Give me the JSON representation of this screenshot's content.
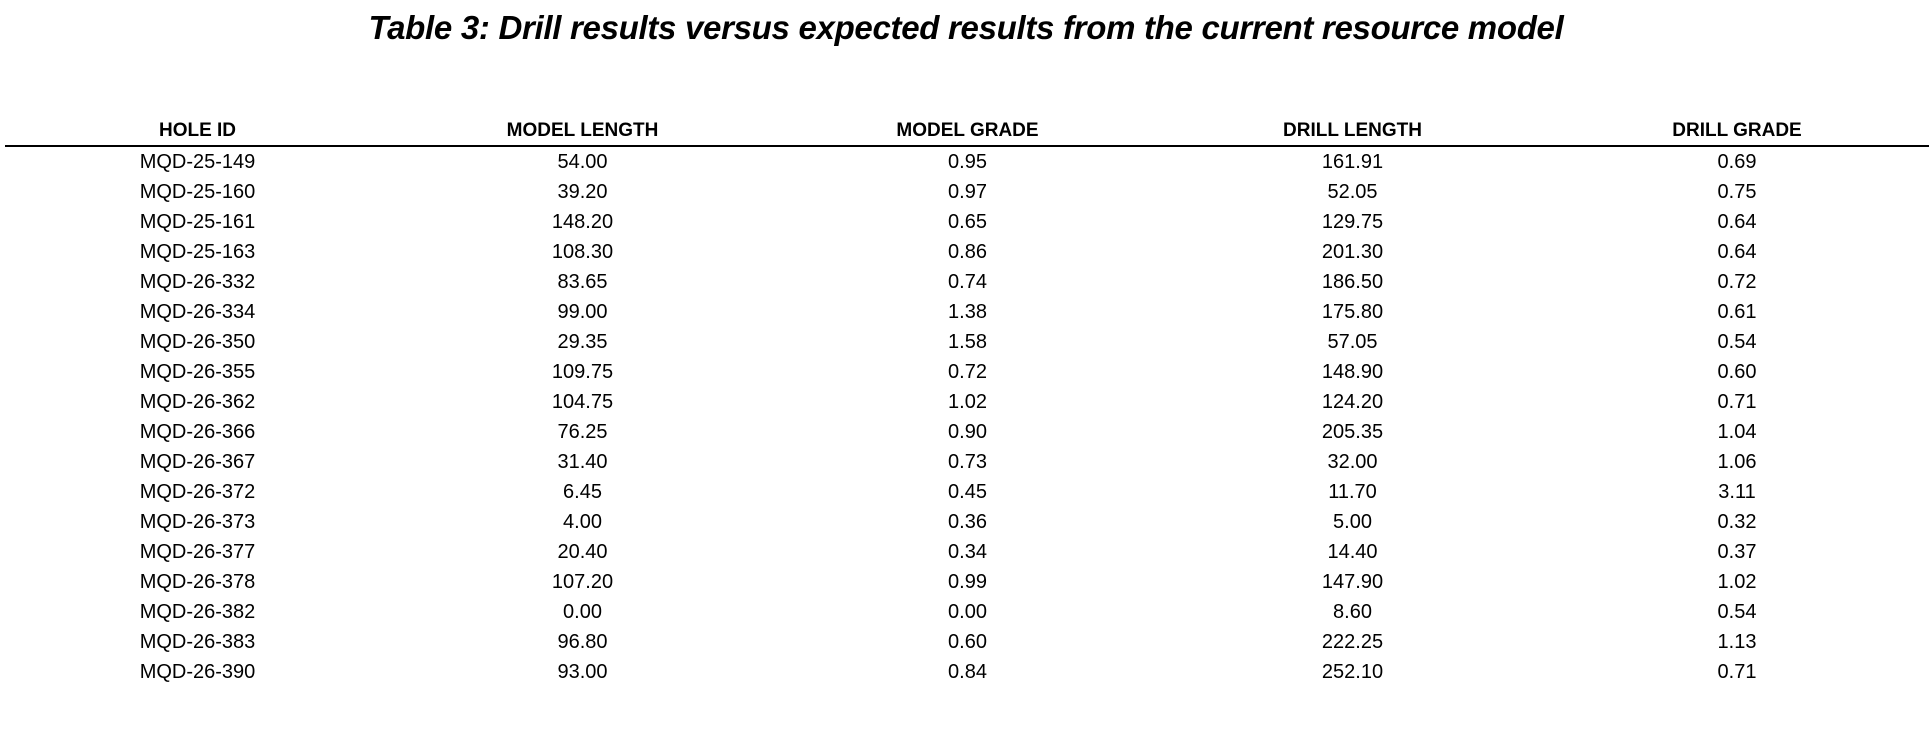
{
  "title": "Table 3: Drill results versus expected results from the current resource model",
  "table": {
    "columns": [
      "HOLE ID",
      "MODEL LENGTH",
      "MODEL GRADE",
      "DRILL LENGTH",
      "DRILL GRADE"
    ],
    "rows": [
      [
        "MQD-25-149",
        "54.00",
        "0.95",
        "161.91",
        "0.69"
      ],
      [
        "MQD-25-160",
        "39.20",
        "0.97",
        "52.05",
        "0.75"
      ],
      [
        "MQD-25-161",
        "148.20",
        "0.65",
        "129.75",
        "0.64"
      ],
      [
        "MQD-25-163",
        "108.30",
        "0.86",
        "201.30",
        "0.64"
      ],
      [
        "MQD-26-332",
        "83.65",
        "0.74",
        "186.50",
        "0.72"
      ],
      [
        "MQD-26-334",
        "99.00",
        "1.38",
        "175.80",
        "0.61"
      ],
      [
        "MQD-26-350",
        "29.35",
        "1.58",
        "57.05",
        "0.54"
      ],
      [
        "MQD-26-355",
        "109.75",
        "0.72",
        "148.90",
        "0.60"
      ],
      [
        "MQD-26-362",
        "104.75",
        "1.02",
        "124.20",
        "0.71"
      ],
      [
        "MQD-26-366",
        "76.25",
        "0.90",
        "205.35",
        "1.04"
      ],
      [
        "MQD-26-367",
        "31.40",
        "0.73",
        "32.00",
        "1.06"
      ],
      [
        "MQD-26-372",
        "6.45",
        "0.45",
        "11.70",
        "3.11"
      ],
      [
        "MQD-26-373",
        "4.00",
        "0.36",
        "5.00",
        "0.32"
      ],
      [
        "MQD-26-377",
        "20.40",
        "0.34",
        "14.40",
        "0.37"
      ],
      [
        "MQD-26-378",
        "107.20",
        "0.99",
        "147.90",
        "1.02"
      ],
      [
        "MQD-26-382",
        "0.00",
        "0.00",
        "8.60",
        "0.54"
      ],
      [
        "MQD-26-383",
        "96.80",
        "0.60",
        "222.25",
        "1.13"
      ],
      [
        "MQD-26-390",
        "93.00",
        "0.84",
        "252.10",
        "0.71"
      ]
    ]
  }
}
